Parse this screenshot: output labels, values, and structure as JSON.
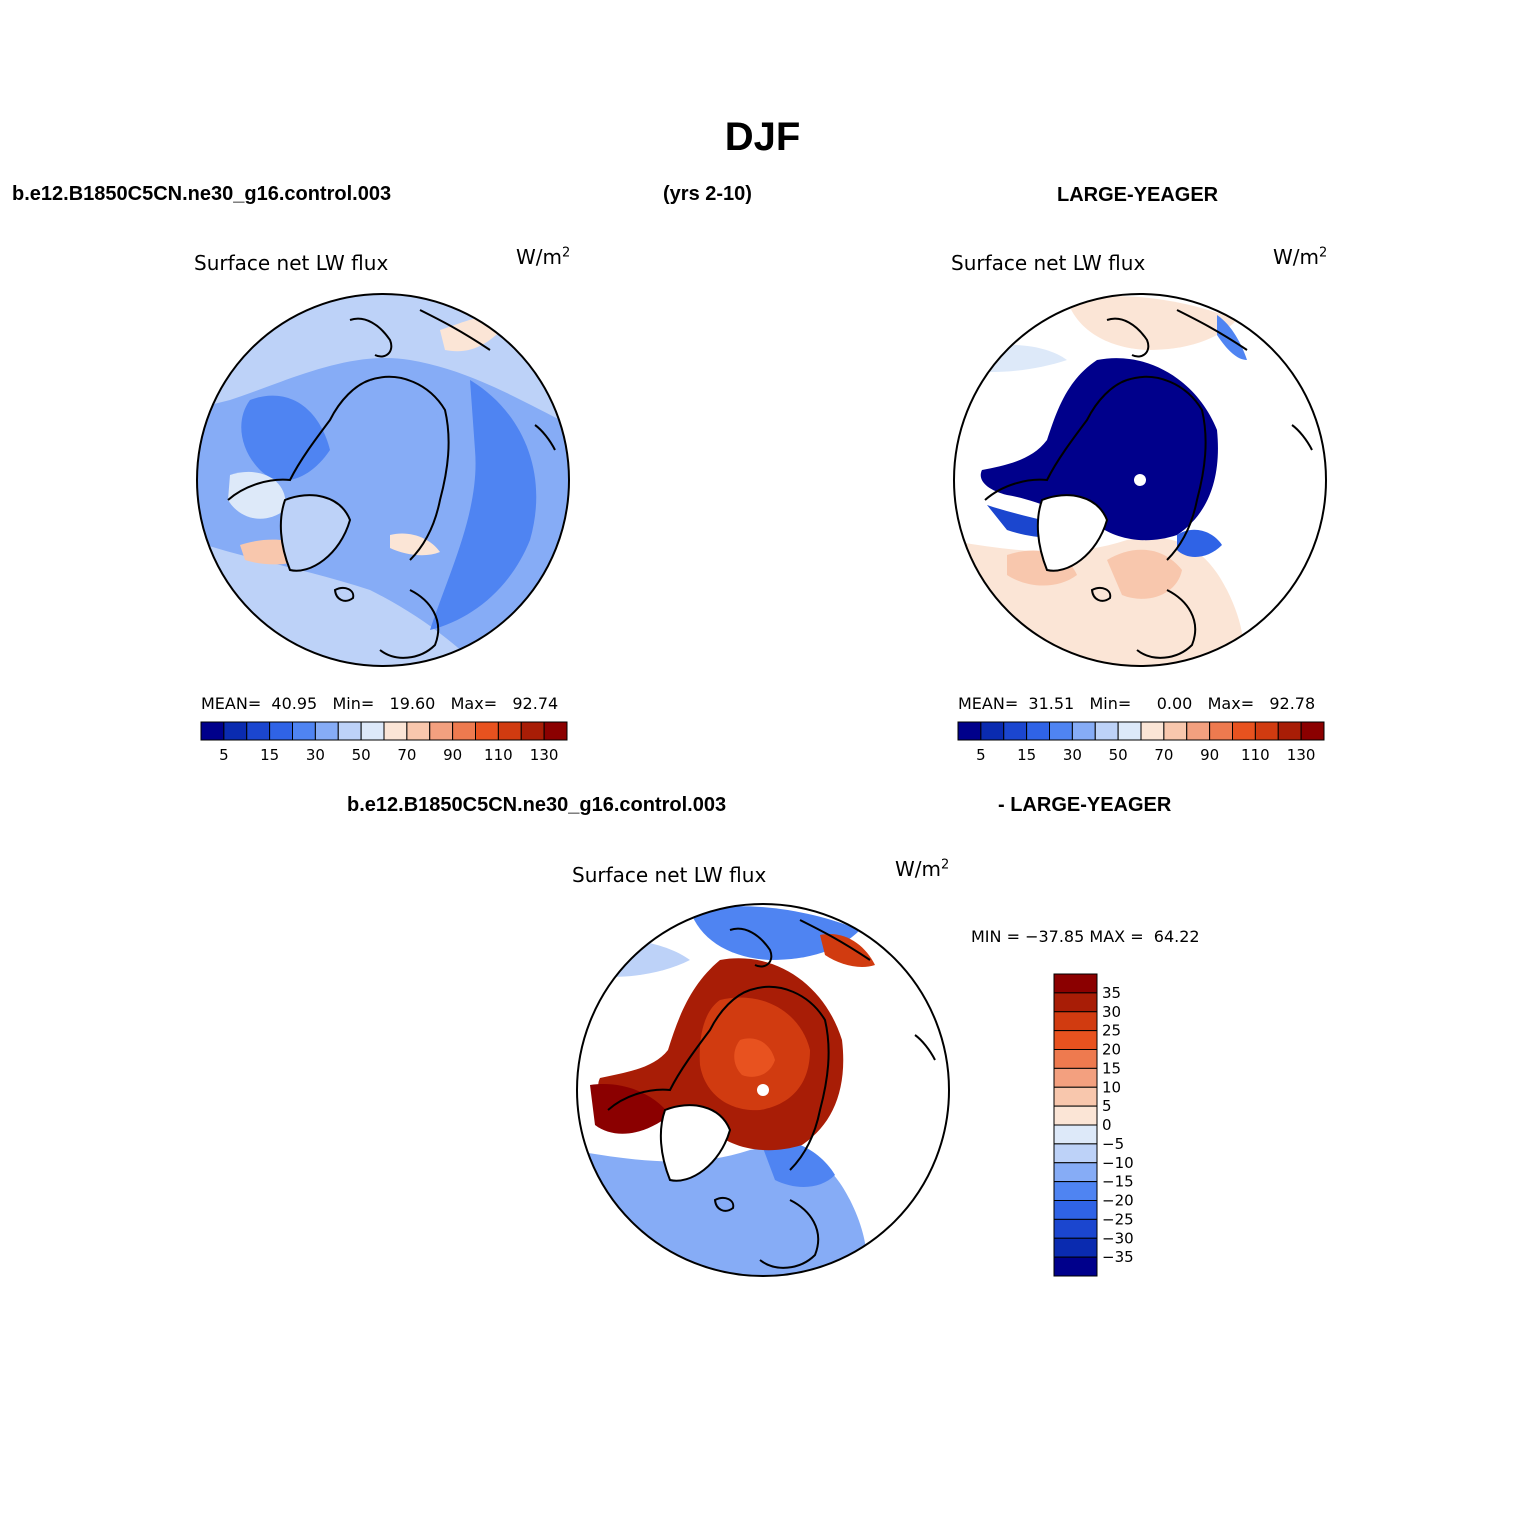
{
  "figure": {
    "title": "DJF",
    "case_label": "b.e12.B1850C5CN.ne30_g16.control.003",
    "years_label": "(yrs 2-10)",
    "obs_label": "LARGE-YEAGER",
    "diff_case_label": "b.e12.B1850C5CN.ne30_g16.control.003",
    "diff_obs_label": "- LARGE-YEAGER"
  },
  "colors": {
    "abs_palette": [
      "#00008b",
      "#0a2bb0",
      "#1b46cf",
      "#2f63e6",
      "#4f84f2",
      "#86acf6",
      "#bdd2f8",
      "#dde9f9",
      "#fbe5d6",
      "#f8c7ad",
      "#f3a07f",
      "#ee7a4f",
      "#e8521f",
      "#d13b10",
      "#a81d06",
      "#8b0000"
    ],
    "diff_palette": [
      "#00008b",
      "#0a2bb0",
      "#1b46cf",
      "#2f63e6",
      "#4f84f2",
      "#86acf6",
      "#bdd2f8",
      "#dde9f9",
      "#fbe5d6",
      "#f8c7ad",
      "#f3a07f",
      "#ee7a4f",
      "#e8521f",
      "#d13b10",
      "#a81d06",
      "#8b0000"
    ],
    "land": "#ffffff",
    "coast": "#000000"
  },
  "chart_data": [
    {
      "type": "heatmap",
      "panel": "model",
      "title": "Surface net LW flux",
      "units": "W/m",
      "units_exp": "2",
      "projection": "north-polar-stereographic",
      "stats": {
        "mean_label": "MEAN=",
        "mean": "40.95",
        "min_label": "Min=",
        "min": "19.60",
        "max_label": "Max=",
        "max": "92.74"
      },
      "colorbar": {
        "levels": [
          5,
          10,
          15,
          20,
          30,
          40,
          50,
          60,
          70,
          80,
          90,
          100,
          110,
          120,
          130
        ],
        "tick_labels": [
          "5",
          "15",
          "30",
          "50",
          "70",
          "90",
          "110",
          "130"
        ]
      },
      "regions": {
        "central_arctic_approx": 40,
        "north_atlantic_approx": 55,
        "siberia_approx": 30,
        "greenland_approx": 30
      }
    },
    {
      "type": "heatmap",
      "panel": "observations",
      "title": "Surface net LW flux",
      "units": "W/m",
      "units_exp": "2",
      "projection": "north-polar-stereographic",
      "stats": {
        "mean_label": "MEAN=",
        "mean": "31.51",
        "min_label": "Min=",
        "min": "0.00",
        "max_label": "Max=",
        "max": "92.78"
      },
      "colorbar": {
        "levels": [
          5,
          10,
          15,
          20,
          30,
          40,
          50,
          60,
          70,
          80,
          90,
          100,
          110,
          120,
          130
        ],
        "tick_labels": [
          "5",
          "15",
          "30",
          "50",
          "70",
          "90",
          "110",
          "130"
        ]
      },
      "regions": {
        "central_arctic_approx": 0,
        "north_atlantic_approx": 70,
        "north_pacific_approx": 65
      }
    },
    {
      "type": "heatmap",
      "panel": "difference",
      "title": "Surface net LW flux",
      "units": "W/m",
      "units_exp": "2",
      "projection": "north-polar-stereographic",
      "stats": {
        "min_label": "MIN =",
        "min": "−37.85",
        "max_label": "MAX =",
        "max": "64.22"
      },
      "colorbar": {
        "orientation": "vertical",
        "levels": [
          -35,
          -30,
          -25,
          -20,
          -15,
          -10,
          -5,
          0,
          5,
          10,
          15,
          20,
          25,
          30,
          35
        ],
        "tick_labels": [
          "35",
          "30",
          "25",
          "20",
          "15",
          "10",
          "5",
          "0",
          "−5",
          "−10",
          "−15",
          "−20",
          "−25",
          "−30",
          "−35"
        ]
      },
      "regions": {
        "central_arctic_approx": 30,
        "north_atlantic_approx": -15,
        "north_pacific_approx": -10
      }
    }
  ]
}
